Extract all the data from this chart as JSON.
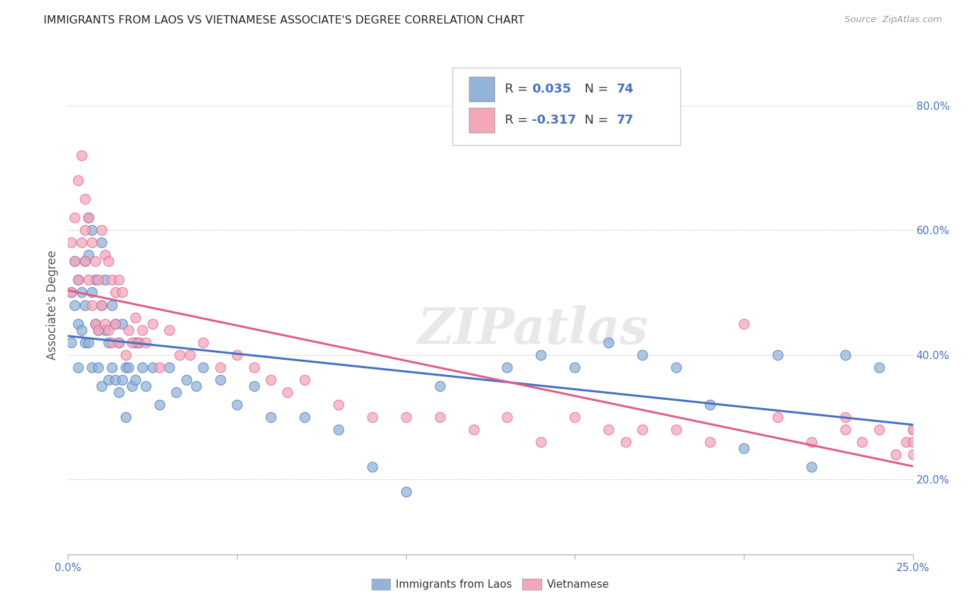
{
  "title": "IMMIGRANTS FROM LAOS VS VIETNAMESE ASSOCIATE'S DEGREE CORRELATION CHART",
  "source": "Source: ZipAtlas.com",
  "ylabel": "Associate's Degree",
  "xlim": [
    0.0,
    0.25
  ],
  "ylim": [
    0.08,
    0.88
  ],
  "xticks": [
    0.0,
    0.05,
    0.1,
    0.15,
    0.2,
    0.25
  ],
  "xtick_labels": [
    "0.0%",
    "",
    "",
    "",
    "",
    "25.0%"
  ],
  "yticks": [
    0.2,
    0.4,
    0.6,
    0.8
  ],
  "ytick_labels": [
    "20.0%",
    "40.0%",
    "60.0%",
    "80.0%"
  ],
  "blue_color": "#92B4D8",
  "pink_color": "#F4A7B9",
  "blue_line_color": "#4472C4",
  "pink_line_color": "#E05C8A",
  "R_blue": 0.035,
  "N_blue": 74,
  "R_pink": -0.317,
  "N_pink": 77,
  "legend_color": "#4472C4",
  "watermark": "ZIPatlas",
  "blue_points_x": [
    0.001,
    0.001,
    0.002,
    0.002,
    0.003,
    0.003,
    0.003,
    0.004,
    0.004,
    0.005,
    0.005,
    0.005,
    0.006,
    0.006,
    0.006,
    0.007,
    0.007,
    0.007,
    0.008,
    0.008,
    0.009,
    0.009,
    0.01,
    0.01,
    0.01,
    0.011,
    0.011,
    0.012,
    0.012,
    0.013,
    0.013,
    0.014,
    0.014,
    0.015,
    0.015,
    0.016,
    0.016,
    0.017,
    0.017,
    0.018,
    0.019,
    0.02,
    0.02,
    0.021,
    0.022,
    0.023,
    0.025,
    0.027,
    0.03,
    0.032,
    0.035,
    0.038,
    0.04,
    0.045,
    0.05,
    0.055,
    0.06,
    0.07,
    0.08,
    0.09,
    0.1,
    0.11,
    0.13,
    0.14,
    0.15,
    0.16,
    0.17,
    0.18,
    0.19,
    0.2,
    0.21,
    0.22,
    0.23,
    0.24
  ],
  "blue_points_y": [
    0.5,
    0.42,
    0.48,
    0.55,
    0.45,
    0.52,
    0.38,
    0.5,
    0.44,
    0.48,
    0.42,
    0.55,
    0.56,
    0.62,
    0.42,
    0.6,
    0.5,
    0.38,
    0.52,
    0.45,
    0.44,
    0.38,
    0.58,
    0.48,
    0.35,
    0.52,
    0.44,
    0.42,
    0.36,
    0.48,
    0.38,
    0.45,
    0.36,
    0.42,
    0.34,
    0.45,
    0.36,
    0.38,
    0.3,
    0.38,
    0.35,
    0.42,
    0.36,
    0.42,
    0.38,
    0.35,
    0.38,
    0.32,
    0.38,
    0.34,
    0.36,
    0.35,
    0.38,
    0.36,
    0.32,
    0.35,
    0.3,
    0.3,
    0.28,
    0.22,
    0.18,
    0.35,
    0.38,
    0.4,
    0.38,
    0.42,
    0.4,
    0.38,
    0.32,
    0.25,
    0.4,
    0.22,
    0.4,
    0.38
  ],
  "pink_points_x": [
    0.001,
    0.001,
    0.002,
    0.002,
    0.003,
    0.003,
    0.004,
    0.004,
    0.005,
    0.005,
    0.005,
    0.006,
    0.006,
    0.007,
    0.007,
    0.008,
    0.008,
    0.009,
    0.009,
    0.01,
    0.01,
    0.011,
    0.011,
    0.012,
    0.012,
    0.013,
    0.013,
    0.014,
    0.014,
    0.015,
    0.015,
    0.016,
    0.017,
    0.018,
    0.019,
    0.02,
    0.021,
    0.022,
    0.023,
    0.025,
    0.027,
    0.03,
    0.033,
    0.036,
    0.04,
    0.045,
    0.05,
    0.055,
    0.06,
    0.065,
    0.07,
    0.08,
    0.09,
    0.1,
    0.11,
    0.12,
    0.13,
    0.14,
    0.15,
    0.16,
    0.165,
    0.17,
    0.18,
    0.19,
    0.2,
    0.21,
    0.22,
    0.23,
    0.23,
    0.235,
    0.24,
    0.245,
    0.248,
    0.25,
    0.25,
    0.25,
    0.25
  ],
  "pink_points_y": [
    0.58,
    0.5,
    0.55,
    0.62,
    0.52,
    0.68,
    0.72,
    0.58,
    0.65,
    0.6,
    0.55,
    0.62,
    0.52,
    0.58,
    0.48,
    0.55,
    0.45,
    0.52,
    0.44,
    0.6,
    0.48,
    0.56,
    0.45,
    0.55,
    0.44,
    0.52,
    0.42,
    0.5,
    0.45,
    0.52,
    0.42,
    0.5,
    0.4,
    0.44,
    0.42,
    0.46,
    0.42,
    0.44,
    0.42,
    0.45,
    0.38,
    0.44,
    0.4,
    0.4,
    0.42,
    0.38,
    0.4,
    0.38,
    0.36,
    0.34,
    0.36,
    0.32,
    0.3,
    0.3,
    0.3,
    0.28,
    0.3,
    0.26,
    0.3,
    0.28,
    0.26,
    0.28,
    0.28,
    0.26,
    0.45,
    0.3,
    0.26,
    0.28,
    0.3,
    0.26,
    0.28,
    0.24,
    0.26,
    0.28,
    0.26,
    0.24,
    0.28
  ]
}
